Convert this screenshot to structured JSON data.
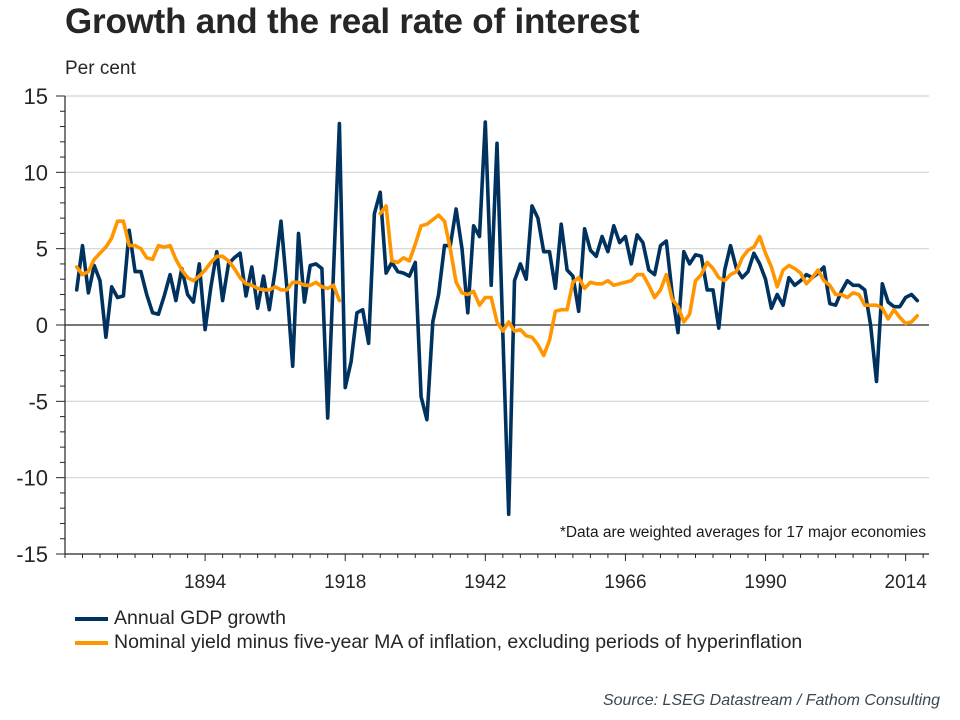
{
  "title": "Growth and the real rate of interest",
  "unit_label": "Per cent",
  "footnote": "*Data are weighted averages for 17 major economies",
  "source": "Source: LSEG Datastream / Fathom Consulting",
  "colors": {
    "gdp": "#00325f",
    "real_rate": "#ff9600",
    "grid": "#d0d4d6",
    "axis": "#262626"
  },
  "legend": [
    {
      "label": "Annual GDP growth",
      "color": "#00325f"
    },
    {
      "label": "Nominal yield minus five-year MA of inflation, excluding periods of hyperinflation",
      "color": "#ff9600"
    }
  ],
  "chart_data": {
    "type": "line",
    "title": "Growth and the real rate of interest",
    "ylabel": "Per cent",
    "xlabel": "",
    "ylim": [
      -15,
      15
    ],
    "xlim": [
      1870,
      2018
    ],
    "yticks": [
      15,
      10,
      5,
      0,
      -5,
      -10,
      -15
    ],
    "xticks": [
      1894,
      1918,
      1942,
      1966,
      1990,
      2014
    ],
    "grid": true,
    "legend_position": "bottom",
    "x_start": 1872,
    "series": [
      {
        "name": "Annual GDP growth",
        "values": [
          2.3,
          5.2,
          2.1,
          3.9,
          2.9,
          -0.8,
          2.5,
          1.8,
          1.9,
          6.2,
          3.5,
          3.5,
          2.0,
          0.8,
          0.7,
          1.9,
          3.3,
          1.6,
          3.7,
          2.0,
          1.5,
          4.0,
          -0.3,
          2.5,
          4.8,
          1.6,
          4.0,
          4.4,
          4.7,
          1.9,
          3.8,
          1.1,
          3.2,
          1.0,
          3.6,
          6.8,
          2.5,
          -2.7,
          6.0,
          1.5,
          3.9,
          4.0,
          3.7,
          -6.1,
          3.5,
          13.2,
          -4.1,
          -2.4,
          0.8,
          1.0,
          -1.2,
          7.3,
          8.7,
          3.4,
          4.1,
          3.5,
          3.4,
          3.2,
          4.1,
          -4.7,
          -6.2,
          0.2,
          2.0,
          5.2,
          5.2,
          7.6,
          5.0,
          0.8,
          6.5,
          5.8,
          13.3,
          2.6,
          11.9,
          -0.5,
          -12.4,
          2.9,
          4.0,
          3.0,
          7.8,
          7.0,
          4.8,
          4.8,
          2.4,
          6.6,
          3.6,
          3.2,
          0.9,
          6.3,
          4.9,
          4.5,
          5.8,
          4.8,
          6.5,
          5.4,
          5.8,
          4.0,
          5.9,
          5.4,
          3.6,
          3.3,
          5.2,
          5.5,
          2.1,
          -0.5,
          4.8,
          4.0,
          4.6,
          4.5,
          2.3,
          2.3,
          -0.2,
          3.6,
          5.2,
          3.7,
          3.1,
          3.5,
          4.7,
          4.0,
          3.0,
          1.1,
          2.0,
          1.3,
          3.1,
          2.6,
          2.9,
          3.3,
          3.1,
          3.4,
          3.8,
          1.4,
          1.3,
          2.2,
          2.9,
          2.6,
          2.6,
          2.3,
          0.0,
          -3.7,
          2.7,
          1.5,
          1.2,
          1.2,
          1.8,
          2.0,
          1.6
        ]
      },
      {
        "name": "Nominal yield minus five-year MA of inflation, excluding periods of hyperinflation",
        "values": [
          3.8,
          3.3,
          3.5,
          4.3,
          4.7,
          5.1,
          5.7,
          6.8,
          6.8,
          5.2,
          5.2,
          5.0,
          4.4,
          4.3,
          5.2,
          5.1,
          5.2,
          4.3,
          3.6,
          3.1,
          2.9,
          3.2,
          3.6,
          4.1,
          4.5,
          4.5,
          4.2,
          3.7,
          3.1,
          2.7,
          2.6,
          2.4,
          2.3,
          2.3,
          2.5,
          2.3,
          2.3,
          2.8,
          2.8,
          2.6,
          2.6,
          2.8,
          2.5,
          2.4,
          2.6,
          1.6,
          null,
          null,
          null,
          null,
          null,
          null,
          7.3,
          7.8,
          4.2,
          4.1,
          4.4,
          4.2,
          5.3,
          6.5,
          6.6,
          6.9,
          7.2,
          6.8,
          5.0,
          2.8,
          2.1,
          2.0,
          2.2,
          1.3,
          1.8,
          1.8,
          0.2,
          -0.4,
          0.2,
          -0.4,
          -0.3,
          -0.7,
          -0.8,
          -1.3,
          -2.0,
          -1.0,
          0.9,
          1.0,
          1.0,
          2.8,
          3.1,
          2.4,
          2.8,
          2.7,
          2.7,
          2.9,
          2.6,
          2.7,
          2.8,
          2.9,
          3.3,
          3.3,
          2.6,
          1.8,
          2.3,
          3.3,
          1.7,
          1.2,
          0.2,
          0.7,
          2.9,
          3.3,
          4.1,
          3.7,
          3.1,
          2.9,
          3.3,
          3.5,
          4.4,
          4.9,
          5.1,
          5.8,
          4.7,
          3.8,
          2.5,
          3.6,
          3.9,
          3.7,
          3.4,
          2.7,
          3.1,
          3.6,
          2.9,
          2.6,
          2.0,
          2.0,
          1.8,
          2.1,
          2.0,
          1.3,
          1.3,
          1.3,
          1.1,
          0.4,
          1.0,
          0.5,
          0.1,
          0.2,
          0.6
        ]
      }
    ],
    "annotations": [
      "*Data are weighted averages for 17 major economies"
    ]
  }
}
